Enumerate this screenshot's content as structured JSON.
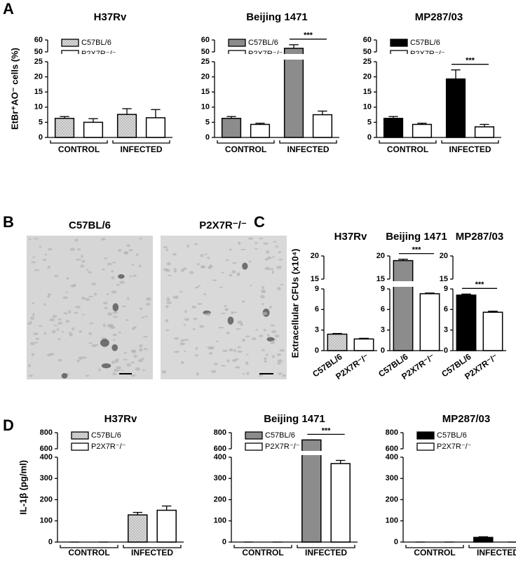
{
  "panel_labels": [
    "A",
    "B",
    "C",
    "D"
  ],
  "micrographs": {
    "labels": [
      "C57BL/6",
      "P2X7R⁻/⁻"
    ]
  },
  "chart_data": [
    {
      "type": "bar",
      "title": "H37Rv",
      "ylabel": "EtBr⁺AO⁻ cells (%)",
      "categories": [
        "CONTROL",
        "INFECTED"
      ],
      "series": [
        {
          "name": "C57BL/6",
          "color": "#d9d9d9",
          "pattern": "dotted",
          "values": [
            6.3,
            7.6
          ],
          "errors": [
            0.6,
            1.9
          ]
        },
        {
          "name": "P2X7R⁻/⁻",
          "color": "#ffffff",
          "pattern": "solid",
          "values": [
            5.0,
            6.5
          ],
          "errors": [
            1.2,
            2.7
          ]
        }
      ],
      "ylim": [
        0,
        60
      ],
      "axis_break": [
        25,
        50
      ],
      "yticks": [
        0,
        5,
        10,
        15,
        20,
        25,
        50,
        60
      ],
      "legend": "upper left"
    },
    {
      "type": "bar",
      "title": "Beijing 1471",
      "categories": [
        "CONTROL",
        "INFECTED"
      ],
      "series": [
        {
          "name": "C57BL/6",
          "color": "#8c8c8c",
          "pattern": "solid",
          "values": [
            6.3,
            53
          ],
          "errors": [
            0.6,
            3
          ]
        },
        {
          "name": "P2X7R⁻/⁻",
          "color": "#ffffff",
          "pattern": "solid",
          "values": [
            4.3,
            7.5
          ],
          "errors": [
            0.4,
            1.2
          ]
        }
      ],
      "ylim": [
        0,
        60
      ],
      "axis_break": [
        25,
        50
      ],
      "yticks": [
        0,
        5,
        10,
        15,
        20,
        25,
        50,
        60
      ],
      "legend": "upper left",
      "annotation": "***"
    },
    {
      "type": "bar",
      "title": "MP287/03",
      "categories": [
        "CONTROL",
        "INFECTED"
      ],
      "series": [
        {
          "name": "C57BL/6",
          "color": "#000000",
          "pattern": "solid",
          "values": [
            6.3,
            19.3
          ],
          "errors": [
            0.6,
            3
          ]
        },
        {
          "name": "P2X7R⁻/⁻",
          "color": "#ffffff",
          "pattern": "solid",
          "values": [
            4.3,
            3.5
          ],
          "errors": [
            0.4,
            0.8
          ]
        }
      ],
      "ylim": [
        0,
        60
      ],
      "axis_break": [
        25,
        50
      ],
      "yticks": [
        0,
        5,
        10,
        15,
        20,
        25,
        50,
        60
      ],
      "legend": "upper left",
      "annotation": "***"
    },
    {
      "type": "bar",
      "title": "H37Rv",
      "ylabel": "Extracellular CFUs (x10⁴)",
      "categories": [
        "C57BL/6",
        "P2X7R⁻/⁻"
      ],
      "values": [
        2.4,
        1.7
      ],
      "errors": [
        0.1,
        0.1
      ],
      "colors": [
        "#d9d9d9",
        "#ffffff"
      ],
      "patterns": [
        "dotted",
        "solid"
      ],
      "ylim": [
        0,
        20
      ],
      "axis_break": [
        9,
        15
      ],
      "yticks": [
        0,
        3,
        6,
        9,
        15,
        20
      ]
    },
    {
      "type": "bar",
      "title": "Beijing 1471",
      "categories": [
        "C57BL/6",
        "P2X7R⁻/⁻"
      ],
      "values": [
        19,
        8.3
      ],
      "errors": [
        0.3,
        0.1
      ],
      "colors": [
        "#8c8c8c",
        "#ffffff"
      ],
      "patterns": [
        "solid",
        "solid"
      ],
      "ylim": [
        0,
        20
      ],
      "axis_break": [
        9,
        15
      ],
      "yticks": [
        0,
        3,
        6,
        9,
        15,
        20
      ],
      "annotation": "***"
    },
    {
      "type": "bar",
      "title": "MP287/03",
      "categories": [
        "C57BL/6",
        "P2X7R⁻/⁻"
      ],
      "values": [
        8.1,
        5.6
      ],
      "errors": [
        0.15,
        0.15
      ],
      "colors": [
        "#000000",
        "#ffffff"
      ],
      "patterns": [
        "solid",
        "solid"
      ],
      "ylim": [
        0,
        20
      ],
      "axis_break": [
        9,
        15
      ],
      "yticks": [
        0,
        3,
        6,
        9,
        15,
        20
      ],
      "annotation": "***"
    },
    {
      "type": "bar",
      "title": "H37Rv",
      "ylabel": "IL-1β (pg/ml)",
      "categories": [
        "CONTROL",
        "INFECTED"
      ],
      "series": [
        {
          "name": "C57BL/6",
          "color": "#d9d9d9",
          "pattern": "dotted",
          "values": [
            0,
            128
          ],
          "errors": [
            0,
            12
          ]
        },
        {
          "name": "P2X7R⁻/⁻",
          "color": "#ffffff",
          "pattern": "solid",
          "values": [
            0,
            150
          ],
          "errors": [
            0,
            20
          ]
        }
      ],
      "ylim": [
        0,
        800
      ],
      "axis_break": [
        400,
        600
      ],
      "yticks": [
        0,
        100,
        200,
        300,
        400,
        600,
        800
      ],
      "legend": "upper left"
    },
    {
      "type": "bar",
      "title": "Beijing 1471",
      "categories": [
        "CONTROL",
        "INFECTED"
      ],
      "series": [
        {
          "name": "C57BL/6",
          "color": "#8c8c8c",
          "pattern": "solid",
          "values": [
            0,
            710
          ],
          "errors": [
            0,
            0
          ]
        },
        {
          "name": "P2X7R⁻/⁻",
          "color": "#ffffff",
          "pattern": "solid",
          "values": [
            0,
            370
          ],
          "errors": [
            0,
            15
          ]
        }
      ],
      "ylim": [
        0,
        800
      ],
      "axis_break": [
        400,
        600
      ],
      "yticks": [
        0,
        100,
        200,
        300,
        400,
        600,
        800
      ],
      "legend": "upper left",
      "annotation": "***"
    },
    {
      "type": "bar",
      "title": "MP287/03",
      "categories": [
        "CONTROL",
        "INFECTED"
      ],
      "series": [
        {
          "name": "C57BL/6",
          "color": "#000000",
          "pattern": "solid",
          "values": [
            0,
            22
          ],
          "errors": [
            0,
            3
          ]
        },
        {
          "name": "P2X7R⁻/⁻",
          "color": "#ffffff",
          "pattern": "solid",
          "values": [
            0,
            0
          ],
          "errors": [
            0,
            0
          ]
        }
      ],
      "ylim": [
        0,
        800
      ],
      "axis_break": [
        400,
        600
      ],
      "yticks": [
        0,
        100,
        200,
        300,
        400,
        600,
        800
      ],
      "legend": "upper left"
    }
  ]
}
